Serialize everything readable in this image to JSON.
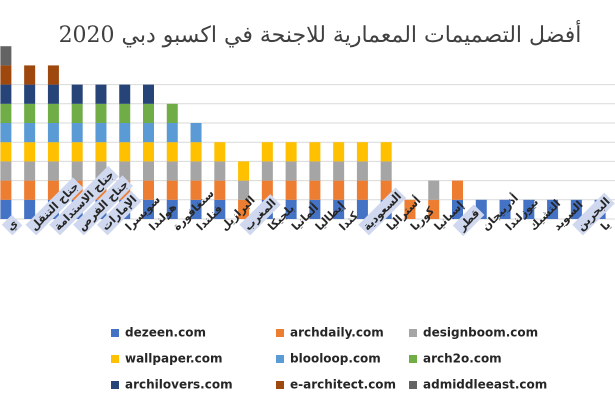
{
  "chart_data": {
    "type": "bar",
    "stacked": true,
    "title": "أفضل التصميمات المعمارية للاجنحة في اكسبو دبي 2020",
    "legend_position": "bottom",
    "grid": true,
    "categories": [
      {
        "label": "ي",
        "highlight": true
      },
      {
        "label": "جناح التنقل",
        "highlight": true
      },
      {
        "label": "جناح الاستدامة",
        "highlight": true
      },
      {
        "label": "جناح الفرص",
        "highlight": true
      },
      {
        "label": "الإمارات",
        "highlight": true
      },
      {
        "label": "سويسرا",
        "highlight": false
      },
      {
        "label": "هولندا",
        "highlight": false
      },
      {
        "label": "سنغافورة",
        "highlight": false
      },
      {
        "label": "فنلندا",
        "highlight": false
      },
      {
        "label": "البرازيل",
        "highlight": false
      },
      {
        "label": "المغرب",
        "highlight": true
      },
      {
        "label": "بلجيكا",
        "highlight": false
      },
      {
        "label": "ألمانيا",
        "highlight": false
      },
      {
        "label": "إيطاليا",
        "highlight": false
      },
      {
        "label": "كندا",
        "highlight": false
      },
      {
        "label": "السعودية",
        "highlight": true
      },
      {
        "label": "أستراليا",
        "highlight": false
      },
      {
        "label": "كوريا",
        "highlight": false
      },
      {
        "label": "إسبانيا",
        "highlight": false
      },
      {
        "label": "قطر",
        "highlight": true
      },
      {
        "label": "أذربيجان",
        "highlight": false
      },
      {
        "label": "نيوزلندا",
        "highlight": false
      },
      {
        "label": "التشيك",
        "highlight": false
      },
      {
        "label": "السويد",
        "highlight": false
      },
      {
        "label": "البحرين",
        "highlight": true
      },
      {
        "label": "يا",
        "highlight": false
      }
    ],
    "series": [
      {
        "name": "dezeen.com",
        "color": "#4472c4",
        "values": [
          1,
          1,
          1,
          1,
          1,
          1,
          1,
          1,
          1,
          1,
          0,
          1,
          1,
          1,
          1,
          1,
          1,
          0,
          0,
          1,
          1,
          1,
          1,
          1,
          1,
          1
        ]
      },
      {
        "name": "archdaily.com",
        "color": "#ed7d31",
        "values": [
          1,
          1,
          1,
          1,
          1,
          1,
          1,
          1,
          1,
          1,
          1,
          1,
          1,
          1,
          1,
          1,
          1,
          1,
          1,
          1,
          0,
          0,
          0,
          0,
          0,
          0
        ]
      },
      {
        "name": "designboom.com",
        "color": "#a5a5a5",
        "values": [
          1,
          1,
          1,
          1,
          1,
          1,
          1,
          1,
          1,
          1,
          1,
          1,
          1,
          1,
          1,
          1,
          1,
          0,
          1,
          0,
          0,
          0,
          0,
          0,
          0,
          0
        ]
      },
      {
        "name": "wallpaper.com",
        "color": "#ffc000",
        "values": [
          1,
          1,
          1,
          1,
          1,
          1,
          1,
          1,
          1,
          1,
          1,
          1,
          1,
          1,
          1,
          1,
          1,
          0,
          0,
          0,
          0,
          0,
          0,
          0,
          0,
          0
        ]
      },
      {
        "name": "blooloop.com",
        "color": "#5b9bd5",
        "values": [
          1,
          1,
          1,
          1,
          1,
          1,
          1,
          1,
          1,
          0,
          0,
          0,
          0,
          0,
          0,
          0,
          0,
          0,
          0,
          0,
          0,
          0,
          0,
          0,
          0,
          0
        ]
      },
      {
        "name": "arch2o.com",
        "color": "#70ad47",
        "values": [
          1,
          1,
          1,
          1,
          1,
          1,
          1,
          1,
          0,
          0,
          0,
          0,
          0,
          0,
          0,
          0,
          0,
          0,
          0,
          0,
          0,
          0,
          0,
          0,
          0,
          0
        ]
      },
      {
        "name": "archilovers.com",
        "color": "#264478",
        "values": [
          1,
          1,
          1,
          1,
          1,
          1,
          1,
          0,
          0,
          0,
          0,
          0,
          0,
          0,
          0,
          0,
          0,
          0,
          0,
          0,
          0,
          0,
          0,
          0,
          0,
          0
        ]
      },
      {
        "name": "e-architect.com",
        "color": "#9e480e",
        "values": [
          1,
          1,
          1,
          0,
          0,
          0,
          0,
          0,
          0,
          0,
          0,
          0,
          0,
          0,
          0,
          0,
          0,
          0,
          0,
          0,
          0,
          0,
          0,
          0,
          0,
          0
        ]
      },
      {
        "name": "admiddleeast.com",
        "color": "#636363",
        "values": [
          1,
          0,
          0,
          0,
          0,
          0,
          0,
          0,
          0,
          0,
          0,
          0,
          0,
          0,
          0,
          0,
          0,
          0,
          0,
          0,
          0,
          0,
          0,
          0,
          0,
          0
        ]
      }
    ]
  }
}
